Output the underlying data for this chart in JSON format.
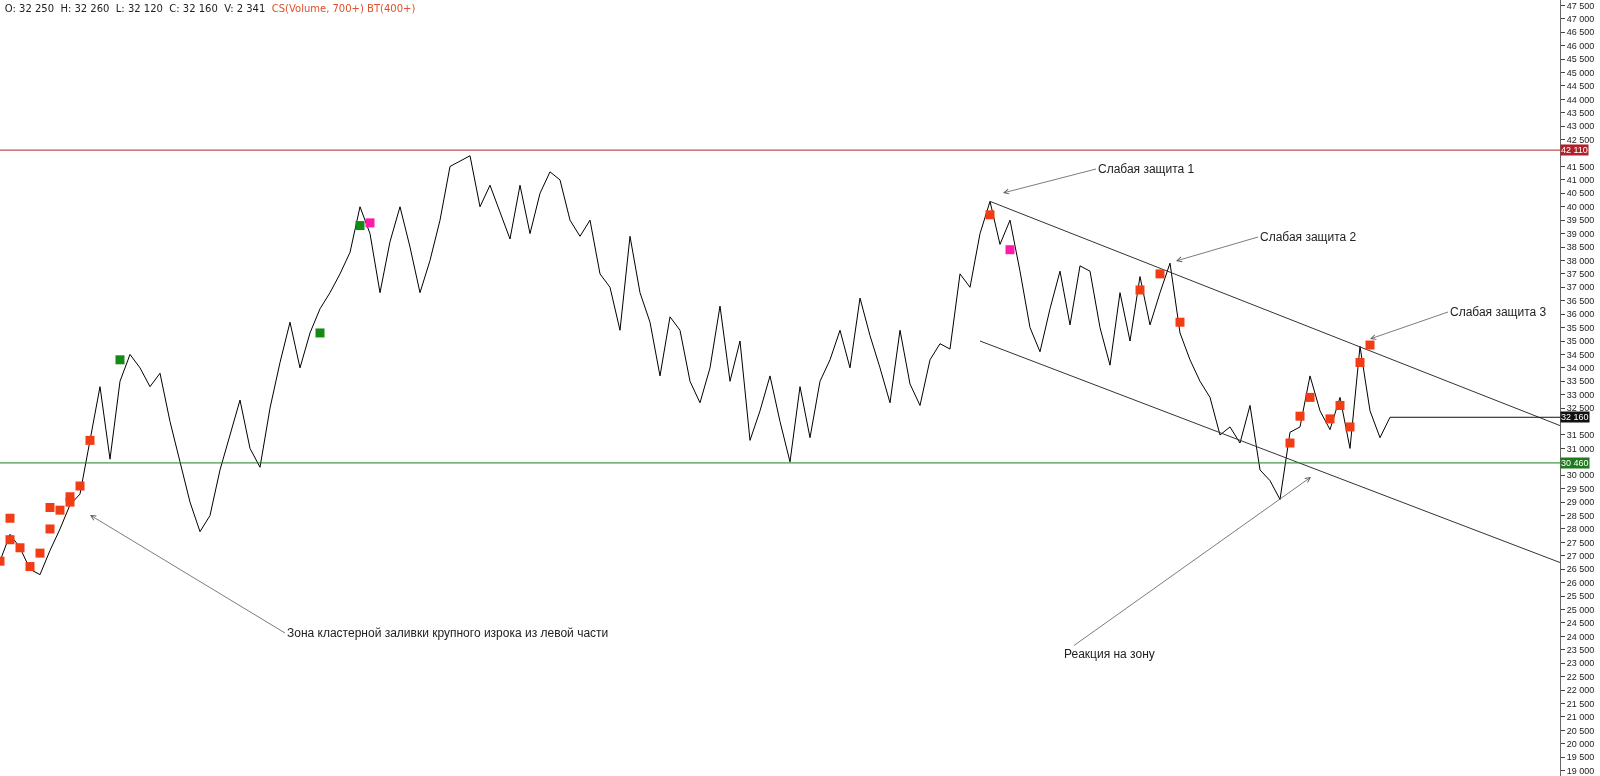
{
  "chart_data": {
    "type": "line",
    "title": "O: 32 250  H: 32 260  L: 32 120  C: 32 160  V: 2 341",
    "subtitle": "CS(Volume, 700+) BT(400+)",
    "categories": [
      null,
      null,
      null,
      null,
      null,
      null,
      null,
      null,
      null,
      null,
      null,
      null,
      null,
      null,
      null,
      null,
      null,
      null,
      null,
      null,
      null,
      null,
      null,
      null,
      null,
      null,
      null,
      null,
      null,
      null,
      null,
      null,
      null,
      null,
      null,
      null,
      null,
      null,
      null,
      null,
      null,
      null,
      null,
      null,
      null,
      null,
      null,
      null,
      null,
      null,
      null,
      null,
      null,
      null,
      null,
      null,
      null,
      null,
      null,
      null,
      null,
      null,
      null,
      null,
      null,
      null,
      null,
      null,
      null,
      null,
      null,
      null,
      null,
      null,
      null,
      null,
      null,
      null,
      null,
      null,
      null,
      null,
      null,
      null,
      null,
      null,
      null,
      null,
      null,
      null,
      null,
      null,
      null,
      null,
      null,
      null,
      null,
      null,
      null,
      null,
      null,
      null,
      null,
      null,
      null,
      null,
      null,
      null,
      null,
      null,
      null,
      null,
      null,
      null,
      null,
      null,
      null,
      null,
      null,
      null,
      null,
      null,
      null,
      null,
      null,
      null,
      null,
      null,
      null,
      null,
      null,
      null,
      null,
      null,
      null,
      null,
      null,
      null,
      null,
      null,
      null,
      null,
      null,
      null,
      null,
      null,
      null,
      null,
      null,
      null,
      null,
      null,
      null,
      null,
      null,
      null,
      null
    ],
    "series": [
      {
        "color": "#000000",
        "values": [
          26800,
          27800,
          27300,
          26500,
          26300,
          27200,
          28000,
          28900,
          29300,
          31300,
          33300,
          30600,
          33500,
          34500,
          34000,
          33300,
          33800,
          32000,
          30500,
          29000,
          27900,
          28500,
          30200,
          31500,
          32800,
          31000,
          30300,
          32500,
          34200,
          35700,
          34000,
          35300,
          36200,
          36800,
          37500,
          38300,
          40000,
          39000,
          36800,
          38700,
          40000,
          38500,
          36800,
          38000,
          39500,
          41500,
          41700,
          41900,
          40000,
          40800,
          39800,
          38800,
          40800,
          39000,
          40500,
          41300,
          41000,
          39500,
          38900,
          39500,
          37500,
          37000,
          35400,
          38900,
          36800,
          35700,
          33700,
          35900,
          35400,
          33500,
          32700,
          34000,
          36300,
          33500,
          35000,
          31300,
          32400,
          33700,
          32000,
          30500,
          33300,
          31400,
          33500,
          34300,
          35400,
          34000,
          36600,
          35200,
          34000,
          32700,
          35400,
          33400,
          32600,
          34300,
          34900,
          34700,
          37500,
          37000,
          39000,
          40200,
          38600,
          39500,
          37600,
          35500,
          34600,
          36200,
          37600,
          35600,
          37800,
          37600,
          35500,
          34100,
          36800,
          35000,
          37400,
          35600,
          36800,
          37900,
          35300,
          34300,
          33500,
          32900,
          31500,
          31800,
          31200,
          32600,
          30200,
          29800,
          29100,
          31600,
          31800,
          33700,
          32400,
          31700,
          32900,
          31000,
          34800,
          32400,
          31400,
          32160,
          null,
          null,
          null,
          null,
          null,
          null,
          null,
          null,
          null,
          null,
          null,
          null,
          null,
          null,
          null,
          null,
          null
        ]
      },
      {
        "color": "#333333",
        "values": [
          null,
          null,
          null,
          null,
          null,
          null,
          null,
          null,
          null,
          null,
          null,
          null,
          null,
          null,
          null,
          null,
          null,
          null,
          null,
          null,
          null,
          null,
          null,
          null,
          null,
          null,
          null,
          null,
          null,
          null,
          null,
          null,
          null,
          null,
          null,
          null,
          null,
          null,
          null,
          null,
          null,
          null,
          null,
          null,
          null,
          null,
          null,
          null,
          null,
          null,
          null,
          null,
          null,
          null,
          null,
          null,
          null,
          null,
          null,
          null,
          null,
          null,
          null,
          null,
          null,
          null,
          null,
          null,
          null,
          null,
          null,
          null,
          null,
          null,
          null,
          null,
          null,
          null,
          null,
          null,
          null,
          null,
          null,
          null,
          null,
          null,
          null,
          null,
          null,
          null,
          null,
          null,
          null,
          null,
          null,
          null,
          null,
          null,
          null,
          40200,
          null,
          null,
          null,
          null,
          null,
          null,
          null,
          null,
          null,
          null,
          null,
          null,
          null,
          null,
          null,
          null,
          null,
          null,
          null,
          null,
          null,
          null,
          null,
          null,
          null,
          null,
          null,
          null,
          null,
          null,
          null,
          null,
          null,
          null,
          null,
          null,
          null,
          null,
          null,
          null,
          null,
          null,
          null,
          null,
          null,
          null,
          null,
          null,
          null,
          null,
          null,
          null,
          null,
          null,
          null,
          null,
          31850
        ]
      },
      {
        "color": "#333333",
        "values": [
          null,
          null,
          null,
          null,
          null,
          null,
          null,
          null,
          null,
          null,
          null,
          null,
          null,
          null,
          null,
          null,
          null,
          null,
          null,
          null,
          null,
          null,
          null,
          null,
          null,
          null,
          null,
          null,
          null,
          null,
          null,
          null,
          null,
          null,
          null,
          null,
          null,
          null,
          null,
          null,
          null,
          null,
          null,
          null,
          null,
          null,
          null,
          null,
          null,
          null,
          null,
          null,
          null,
          null,
          null,
          null,
          null,
          null,
          null,
          null,
          null,
          null,
          null,
          null,
          null,
          null,
          null,
          null,
          null,
          null,
          null,
          null,
          null,
          null,
          null,
          null,
          null,
          null,
          null,
          null,
          null,
          null,
          null,
          null,
          null,
          null,
          null,
          null,
          null,
          null,
          null,
          null,
          null,
          null,
          null,
          null,
          null,
          null,
          35000,
          null,
          null,
          null,
          null,
          null,
          null,
          null,
          null,
          null,
          null,
          null,
          null,
          null,
          null,
          null,
          null,
          null,
          null,
          null,
          null,
          null,
          null,
          null,
          null,
          null,
          null,
          null,
          null,
          null,
          null,
          null,
          null,
          null,
          null,
          null,
          null,
          null,
          null,
          null,
          null,
          null,
          null,
          null,
          null,
          null,
          null,
          null,
          null,
          null,
          null,
          null,
          null,
          null,
          null,
          null,
          null,
          null,
          26750
        ]
      },
      {
        "type": "scatter",
        "color": "#f23c14",
        "marker": "square",
        "values": [
          26800,
          28400,
          27300,
          26600,
          27100,
          28000,
          28700,
          29200,
          29600,
          31300,
          null,
          null,
          null,
          null,
          null,
          null,
          null,
          null,
          null,
          null,
          null,
          null,
          null,
          null,
          null,
          null,
          null,
          null,
          null,
          null,
          null,
          null,
          null,
          null,
          null,
          null,
          null,
          null,
          null,
          null,
          null,
          null,
          null,
          null,
          null,
          null,
          null,
          null,
          null,
          null,
          null,
          null,
          null,
          null,
          null,
          null,
          null,
          null,
          null,
          null,
          null,
          null,
          null,
          null,
          null,
          null,
          null,
          null,
          null,
          null,
          null,
          null,
          null,
          null,
          null,
          null,
          null,
          null,
          null,
          null,
          null,
          null,
          null,
          null,
          null,
          null,
          null,
          null,
          null,
          null,
          null,
          null,
          null,
          null,
          null,
          null,
          null,
          null,
          null,
          39700,
          null,
          null,
          null,
          null,
          null,
          null,
          null,
          null,
          null,
          null,
          null,
          null,
          null,
          null,
          36900,
          null,
          37500,
          null,
          35700,
          null,
          null,
          null,
          null,
          null,
          null,
          null,
          null,
          null,
          null,
          31200,
          32200,
          32900,
          null,
          32100,
          32600,
          31800,
          null,
          34850,
          null,
          null,
          null,
          null,
          null,
          null,
          null,
          null,
          null,
          null,
          null,
          null,
          null,
          null,
          null,
          null,
          null,
          null,
          null
        ]
      },
      {
        "type": "scatter",
        "color": "#f23c14",
        "marker": "square",
        "values": [
          null,
          27600,
          null,
          null,
          null,
          28800,
          null,
          29000,
          null,
          null,
          null,
          null,
          null,
          null,
          null,
          null,
          null,
          null,
          null,
          null,
          null,
          null,
          null,
          null,
          null,
          null,
          null,
          null,
          null,
          null,
          null,
          null,
          null,
          null,
          null,
          null,
          null,
          null,
          null,
          null,
          null,
          null,
          null,
          null,
          null,
          null,
          null,
          null,
          null,
          null,
          null,
          null,
          null,
          null,
          null,
          null,
          null,
          null,
          null,
          null,
          null,
          null,
          null,
          null,
          null,
          null,
          null,
          null,
          null,
          null,
          null,
          null,
          null,
          null,
          null,
          null,
          null,
          null,
          null,
          null,
          null,
          null,
          null,
          null,
          null,
          null,
          null,
          null,
          null,
          null,
          null,
          null,
          null,
          null,
          null,
          null,
          null,
          null,
          null,
          null,
          null,
          null,
          null,
          null,
          null,
          null,
          null,
          null,
          null,
          null,
          null,
          null,
          null,
          null,
          null,
          null,
          null,
          null,
          null,
          null,
          null,
          null,
          null,
          null,
          null,
          null,
          null,
          null,
          null,
          null,
          null,
          null,
          null,
          null,
          null,
          null,
          34200,
          null,
          null,
          null,
          null,
          null,
          null,
          null,
          null,
          null,
          null,
          null,
          null,
          null,
          null,
          null,
          null,
          null,
          null,
          null,
          null
        ]
      },
      {
        "type": "scatter",
        "color": "#138a13",
        "marker": "square",
        "values": [
          null,
          null,
          null,
          null,
          null,
          null,
          null,
          null,
          null,
          null,
          null,
          null,
          34300,
          null,
          null,
          null,
          null,
          null,
          null,
          null,
          null,
          null,
          null,
          null,
          null,
          null,
          null,
          null,
          null,
          null,
          null,
          null,
          35300,
          null,
          null,
          null,
          39300,
          null,
          null,
          null,
          null,
          null,
          null,
          null,
          null,
          null,
          null,
          null,
          null,
          null,
          null,
          null,
          null,
          null,
          null,
          null,
          null,
          null,
          null,
          null,
          null,
          null,
          null,
          null,
          null,
          null,
          null,
          null,
          null,
          null,
          null,
          null,
          null,
          null,
          null,
          null,
          null,
          null,
          null,
          null,
          null,
          null,
          null,
          null,
          null,
          null,
          null,
          null,
          null,
          null,
          null,
          null,
          null,
          null,
          null,
          null,
          null,
          null,
          null,
          null,
          null,
          null,
          null,
          null,
          null,
          null,
          null,
          null,
          null,
          null,
          null,
          null,
          null,
          null,
          null,
          null,
          null,
          null,
          null,
          null,
          null,
          null,
          null,
          null,
          null,
          null,
          null,
          null,
          null,
          null,
          null,
          null,
          null,
          null,
          null,
          null,
          null,
          null,
          null,
          null,
          null,
          null,
          null,
          null,
          null,
          null,
          null,
          null,
          null,
          null,
          null,
          null,
          null,
          null,
          null,
          null,
          null
        ]
      },
      {
        "type": "scatter",
        "color": "#ff1aa8",
        "marker": "square",
        "values": [
          null,
          null,
          null,
          null,
          null,
          null,
          null,
          null,
          null,
          null,
          null,
          null,
          null,
          null,
          null,
          null,
          null,
          null,
          null,
          null,
          null,
          null,
          null,
          null,
          null,
          null,
          null,
          null,
          null,
          null,
          null,
          null,
          null,
          null,
          null,
          null,
          null,
          39400,
          null,
          null,
          null,
          null,
          null,
          null,
          null,
          null,
          null,
          null,
          null,
          null,
          null,
          null,
          null,
          null,
          null,
          null,
          null,
          null,
          null,
          null,
          null,
          null,
          null,
          null,
          null,
          null,
          null,
          null,
          null,
          null,
          null,
          null,
          null,
          null,
          null,
          null,
          null,
          null,
          null,
          null,
          null,
          null,
          null,
          null,
          null,
          null,
          null,
          null,
          null,
          null,
          null,
          null,
          null,
          null,
          null,
          null,
          null,
          null,
          null,
          null,
          null,
          38400,
          null,
          null,
          null,
          null,
          null,
          null,
          null,
          null,
          null,
          null,
          null,
          null,
          null,
          null,
          null,
          null,
          null,
          null,
          null,
          null,
          null,
          null,
          null,
          null,
          null,
          null,
          null,
          null,
          null,
          null,
          null,
          null,
          null,
          null,
          null,
          null,
          null,
          null,
          null,
          null,
          null,
          null,
          null,
          null,
          null,
          null,
          null,
          null,
          null,
          null,
          null,
          null,
          null,
          null,
          null
        ]
      }
    ],
    "ylim": [
      18800,
      47700
    ],
    "yticks": [
      {
        "value": 19000,
        "label": "19 000"
      },
      {
        "value": 19500,
        "label": "19 500"
      },
      {
        "value": 20000,
        "label": "20 000"
      },
      {
        "value": 20500,
        "label": "20 500"
      },
      {
        "value": 21000,
        "label": "21 000"
      },
      {
        "value": 21500,
        "label": "21 500"
      },
      {
        "value": 22000,
        "label": "22 000"
      },
      {
        "value": 22500,
        "label": "22 500"
      },
      {
        "value": 23000,
        "label": "23 000"
      },
      {
        "value": 23500,
        "label": "23 500"
      },
      {
        "value": 24000,
        "label": "24 000"
      },
      {
        "value": 24500,
        "label": "24 500"
      },
      {
        "value": 25000,
        "label": "25 000"
      },
      {
        "value": 25500,
        "label": "25 500"
      },
      {
        "value": 26000,
        "label": "26 000"
      },
      {
        "value": 26500,
        "label": "26 500"
      },
      {
        "value": 27000,
        "label": "27 000"
      },
      {
        "value": 27500,
        "label": "27 500"
      },
      {
        "value": 28000,
        "label": "28 000"
      },
      {
        "value": 28500,
        "label": "28 500"
      },
      {
        "value": 29000,
        "label": "29 000"
      },
      {
        "value": 29500,
        "label": "29 500"
      },
      {
        "value": 30000,
        "label": "30 000"
      },
      {
        "value": 31000,
        "label": "31 000"
      },
      {
        "value": 31500,
        "label": "31 500"
      },
      {
        "value": 32500,
        "label": "32 500"
      },
      {
        "value": 33000,
        "label": "33 000"
      },
      {
        "value": 33500,
        "label": "33 500"
      },
      {
        "value": 34000,
        "label": "34 000"
      },
      {
        "value": 34500,
        "label": "34 500"
      },
      {
        "value": 35000,
        "label": "35 000"
      },
      {
        "value": 35500,
        "label": "35 500"
      },
      {
        "value": 36000,
        "label": "36 000"
      },
      {
        "value": 36500,
        "label": "36 500"
      },
      {
        "value": 37000,
        "label": "37 000"
      },
      {
        "value": 37500,
        "label": "37 500"
      },
      {
        "value": 38000,
        "label": "38 000"
      },
      {
        "value": 38500,
        "label": "38 500"
      },
      {
        "value": 39000,
        "label": "39 000"
      },
      {
        "value": 39500,
        "label": "39 500"
      },
      {
        "value": 40000,
        "label": "40 000"
      },
      {
        "value": 40500,
        "label": "40 500"
      },
      {
        "value": 41000,
        "label": "41 000"
      },
      {
        "value": 41500,
        "label": "41 500"
      },
      {
        "value": 42500,
        "label": "42 500"
      },
      {
        "value": 43000,
        "label": "43 000"
      },
      {
        "value": 43500,
        "label": "43 500"
      },
      {
        "value": 44000,
        "label": "44 000"
      },
      {
        "value": 44500,
        "label": "44 500"
      },
      {
        "value": 45000,
        "label": "45 000"
      },
      {
        "value": 45500,
        "label": "45 500"
      },
      {
        "value": 46000,
        "label": "46 000"
      },
      {
        "value": 46500,
        "label": "46 500"
      },
      {
        "value": 47000,
        "label": "47 000"
      },
      {
        "value": 47500,
        "label": "47 500"
      }
    ],
    "ref_lines": [
      {
        "axis": "y",
        "value": 42110,
        "label": "42 110",
        "color": "#b2202a"
      },
      {
        "axis": "y",
        "value": 30460,
        "label": "30 460",
        "color": "#1f7a1f"
      },
      {
        "axis": "y",
        "value": 32160,
        "label": "32 160",
        "color": "#111111"
      }
    ],
    "annotations": [
      "Слабая защита 1",
      "Слабая защита 2",
      "Слабая защита 3",
      "Зона кластерной заливки крупного изрока из левой части",
      "Реакция на зону"
    ]
  }
}
